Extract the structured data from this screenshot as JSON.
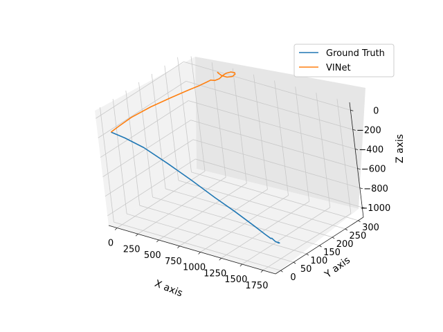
{
  "chart_data": {
    "type": "line",
    "projection": "3d",
    "title": "",
    "xlabel": "X axis",
    "ylabel": "Y axis",
    "zlabel": "Z axis",
    "xlim": [
      -100,
      1900
    ],
    "ylim": [
      -20,
      320
    ],
    "zlim": [
      -1100,
      80
    ],
    "xticks": [
      0,
      250,
      500,
      750,
      1000,
      1250,
      1500,
      1750
    ],
    "yticks": [
      0,
      50,
      100,
      150,
      200,
      250,
      300
    ],
    "zticks": [
      0,
      -200,
      -400,
      -600,
      -800,
      -1000
    ],
    "grid": true,
    "legend": {
      "placement": "upper-right"
    },
    "colors": {
      "ground_truth": "#1f77b4",
      "vinet": "#ff7f0e"
    },
    "series": [
      {
        "name": "Ground Truth",
        "color": "#1f77b4",
        "x": [
          0,
          150,
          350,
          600,
          850,
          1100,
          1300,
          1500,
          1600,
          1650,
          1640,
          1660,
          1690,
          1705,
          1700
        ],
        "y": [
          0,
          4,
          10,
          16,
          22,
          28,
          34,
          40,
          46,
          51,
          57,
          62,
          65,
          64,
          60
        ],
        "z": [
          -150,
          -180,
          -240,
          -350,
          -470,
          -600,
          -700,
          -810,
          -880,
          -920,
          -930,
          -965,
          -980,
          -975,
          -960
        ]
      },
      {
        "name": "VINet",
        "color": "#ff7f0e",
        "x": [
          0,
          30,
          100,
          220,
          350,
          450,
          510,
          540,
          520,
          480,
          460,
          480,
          520,
          560,
          600,
          650,
          690,
          700,
          680,
          630,
          580,
          550,
          545,
          560
        ],
        "y": [
          0,
          20,
          50,
          90,
          130,
          165,
          190,
          210,
          230,
          242,
          250,
          257,
          262,
          264,
          265,
          268,
          270,
          268,
          263,
          258,
          254,
          252,
          251,
          251
        ],
        "z": [
          -150,
          -120,
          -60,
          10,
          70,
          110,
          130,
          140,
          120,
          90,
          70,
          60,
          80,
          120,
          150,
          170,
          170,
          160,
          140,
          130,
          140,
          160,
          170,
          160
        ]
      }
    ]
  }
}
